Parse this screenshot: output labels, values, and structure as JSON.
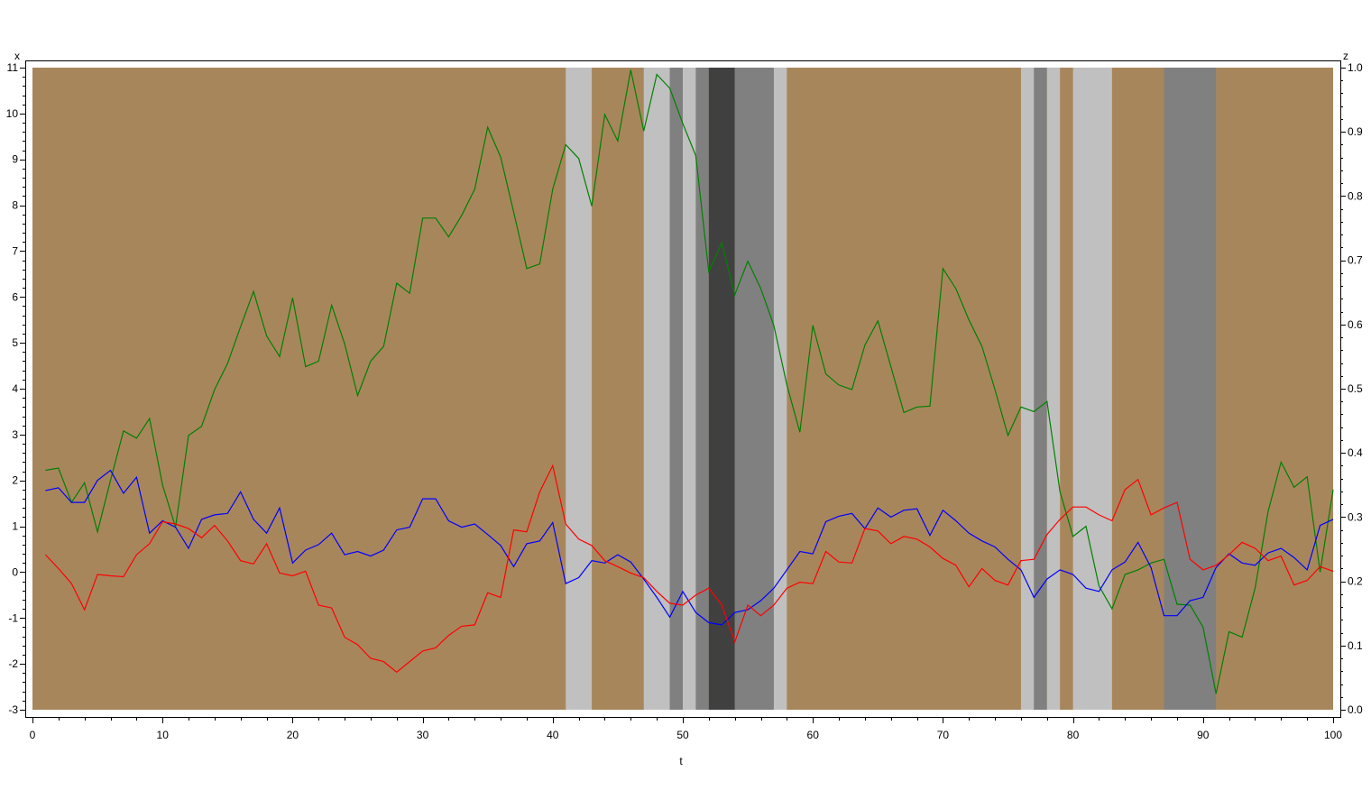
{
  "chart_data": {
    "type": "line",
    "title": "",
    "xlabel": "t",
    "ylabel": "x",
    "y2label": "z",
    "xlim": [
      0,
      100
    ],
    "ylim": [
      -3,
      11
    ],
    "y2lim": [
      0.0,
      1.0
    ],
    "grid": false,
    "legend": null,
    "x_ticks": [
      0,
      10,
      20,
      30,
      40,
      50,
      60,
      70,
      80,
      90,
      100
    ],
    "y_ticks": [
      -3,
      -2,
      -1,
      0,
      1,
      2,
      3,
      4,
      5,
      6,
      7,
      8,
      9,
      10,
      11
    ],
    "y2_ticks": [
      "0.0",
      "0.1",
      "0.2",
      "0.3",
      "0.4",
      "0.5",
      "0.6",
      "0.7",
      "0.8",
      "0.9",
      "1.0"
    ],
    "background_color": "#a8865c",
    "x": [
      1,
      2,
      3,
      4,
      5,
      6,
      7,
      8,
      9,
      10,
      11,
      12,
      13,
      14,
      15,
      16,
      17,
      18,
      19,
      20,
      21,
      22,
      23,
      24,
      25,
      26,
      27,
      28,
      29,
      30,
      31,
      32,
      33,
      34,
      35,
      36,
      37,
      38,
      39,
      40,
      41,
      42,
      43,
      44,
      45,
      46,
      47,
      48,
      49,
      50,
      51,
      52,
      53,
      54,
      55,
      56,
      57,
      58,
      59,
      60,
      61,
      62,
      63,
      64,
      65,
      66,
      67,
      68,
      69,
      70,
      71,
      72,
      73,
      74,
      75,
      76,
      77,
      78,
      79,
      80,
      81,
      82,
      83,
      84,
      85,
      86,
      87,
      88,
      89,
      90,
      91,
      92,
      93,
      94,
      95,
      96,
      97,
      98,
      99,
      100
    ],
    "series": [
      {
        "name": "green",
        "color": "#008000",
        "values": [
          2.22,
          2.27,
          1.52,
          1.95,
          0.88,
          2.0,
          3.08,
          2.92,
          3.35,
          1.9,
          0.98,
          2.98,
          3.18,
          3.98,
          4.55,
          5.35,
          6.12,
          5.15,
          4.7,
          5.98,
          4.48,
          4.6,
          5.82,
          4.98,
          3.85,
          4.6,
          4.92,
          6.3,
          6.08,
          7.72,
          7.72,
          7.31,
          7.78,
          8.35,
          9.7,
          9.05,
          7.85,
          6.62,
          6.72,
          8.35,
          9.32,
          9.02,
          7.98,
          9.98,
          9.4,
          10.95,
          9.62,
          10.85,
          10.55,
          9.78,
          9.08,
          6.55,
          7.18,
          6.05,
          6.78,
          6.18,
          5.38,
          4.08,
          3.05,
          5.38,
          4.32,
          4.08,
          3.98,
          4.95,
          5.48,
          4.48,
          3.48,
          3.6,
          3.62,
          6.62,
          6.18,
          5.5,
          4.92,
          3.98,
          2.98,
          3.6,
          3.5,
          3.72,
          1.75,
          0.78,
          1.0,
          -0.3,
          -0.8,
          -0.05,
          0.05,
          0.2,
          0.28,
          -0.7,
          -0.72,
          -1.2,
          -2.65,
          -1.3,
          -1.42,
          -0.35,
          1.32,
          2.4,
          1.85,
          2.08,
          0.0,
          1.8
        ]
      },
      {
        "name": "blue",
        "color": "#0000ff",
        "values": [
          1.78,
          1.84,
          1.52,
          1.52,
          2.0,
          2.22,
          1.72,
          2.07,
          0.85,
          1.12,
          0.98,
          0.52,
          1.15,
          1.25,
          1.28,
          1.75,
          1.15,
          0.85,
          1.4,
          0.2,
          0.48,
          0.6,
          0.85,
          0.38,
          0.45,
          0.35,
          0.48,
          0.92,
          0.98,
          1.6,
          1.6,
          1.12,
          0.98,
          1.05,
          0.82,
          0.58,
          0.12,
          0.62,
          0.68,
          1.08,
          -0.25,
          -0.12,
          0.25,
          0.2,
          0.38,
          0.22,
          -0.15,
          -0.55,
          -0.98,
          -0.42,
          -0.88,
          -1.1,
          -1.15,
          -0.88,
          -0.82,
          -0.62,
          -0.35,
          0.05,
          0.45,
          0.4,
          1.1,
          1.22,
          1.28,
          0.95,
          1.4,
          1.2,
          1.35,
          1.38,
          0.8,
          1.35,
          1.12,
          0.85,
          0.68,
          0.55,
          0.28,
          0.05,
          -0.55,
          -0.15,
          0.05,
          -0.05,
          -0.35,
          -0.42,
          0.05,
          0.22,
          0.65,
          0.1,
          -0.95,
          -0.95,
          -0.62,
          -0.55,
          0.1,
          0.4,
          0.2,
          0.15,
          0.42,
          0.52,
          0.32,
          0.05,
          1.02,
          1.15
        ]
      },
      {
        "name": "red",
        "color": "#ff0000",
        "values": [
          0.38,
          0.08,
          -0.25,
          -0.82,
          -0.05,
          -0.08,
          -0.1,
          0.38,
          0.62,
          1.1,
          1.05,
          0.95,
          0.75,
          1.02,
          0.68,
          0.25,
          0.18,
          0.62,
          -0.02,
          -0.08,
          0.02,
          -0.72,
          -0.78,
          -1.42,
          -1.58,
          -1.88,
          -1.95,
          -2.18,
          -1.95,
          -1.72,
          -1.65,
          -1.38,
          -1.18,
          -1.15,
          -0.45,
          -0.55,
          0.92,
          0.88,
          1.75,
          2.32,
          1.05,
          0.72,
          0.58,
          0.25,
          0.12,
          -0.02,
          -0.12,
          -0.42,
          -0.68,
          -0.72,
          -0.5,
          -0.35,
          -0.72,
          -1.52,
          -0.72,
          -0.95,
          -0.72,
          -0.35,
          -0.22,
          -0.25,
          0.45,
          0.22,
          0.2,
          0.95,
          0.9,
          0.62,
          0.78,
          0.72,
          0.55,
          0.3,
          0.15,
          -0.32,
          0.08,
          -0.18,
          -0.28,
          0.25,
          0.28,
          0.82,
          1.15,
          1.42,
          1.42,
          1.25,
          1.12,
          1.8,
          2.02,
          1.25,
          1.4,
          1.52,
          0.28,
          0.05,
          0.15,
          0.38,
          0.65,
          0.52,
          0.25,
          0.35,
          -0.28,
          -0.18,
          0.12,
          0.02
        ]
      }
    ],
    "z_bands": [
      {
        "t0": 41,
        "t1": 43,
        "color": "#c0c0c0"
      },
      {
        "t0": 47,
        "t1": 49,
        "color": "#c0c0c0"
      },
      {
        "t0": 49,
        "t1": 50,
        "color": "#808080"
      },
      {
        "t0": 50,
        "t1": 51,
        "color": "#c0c0c0"
      },
      {
        "t0": 51,
        "t1": 52,
        "color": "#808080"
      },
      {
        "t0": 52,
        "t1": 54,
        "color": "#404040"
      },
      {
        "t0": 54,
        "t1": 57,
        "color": "#808080"
      },
      {
        "t0": 57,
        "t1": 58,
        "color": "#c0c0c0"
      },
      {
        "t0": 76,
        "t1": 77,
        "color": "#c0c0c0"
      },
      {
        "t0": 77,
        "t1": 78,
        "color": "#808080"
      },
      {
        "t0": 78,
        "t1": 79,
        "color": "#c0c0c0"
      },
      {
        "t0": 80,
        "t1": 83,
        "color": "#c0c0c0"
      },
      {
        "t0": 87,
        "t1": 91,
        "color": "#808080"
      }
    ]
  },
  "axes": {
    "x_label": "t",
    "y_left_label": "x",
    "y_right_label": "z"
  }
}
